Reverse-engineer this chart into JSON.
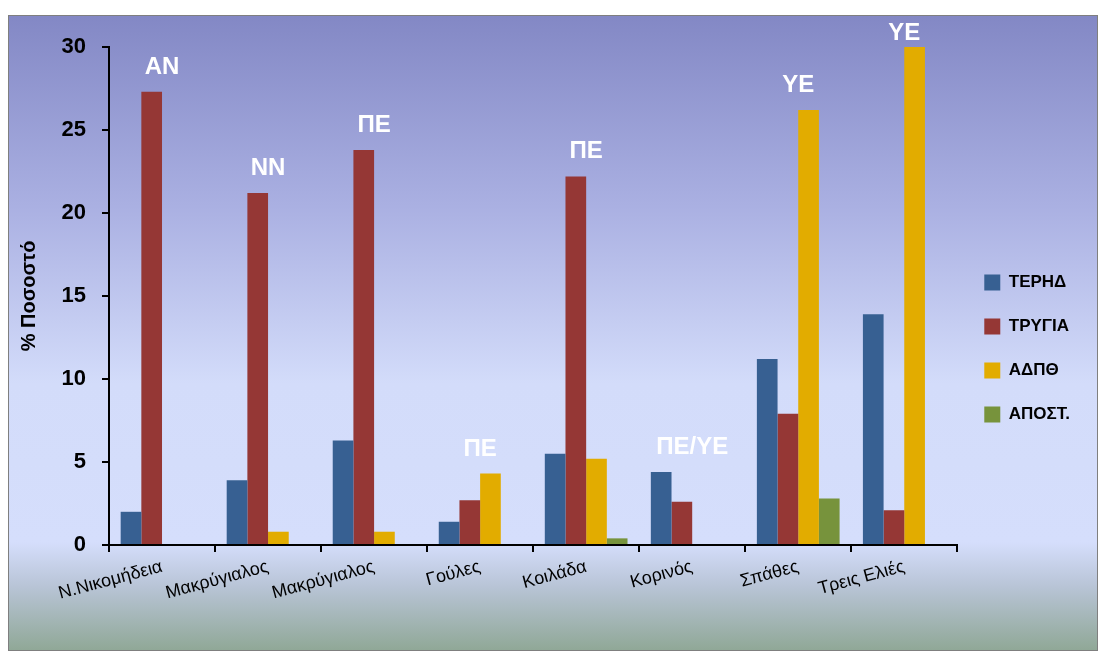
{
  "chart_data": {
    "type": "bar",
    "ylabel": "% Ποσοστό",
    "categories": [
      "Ν.Νικομήδεια",
      "Μακρύγιαλος",
      "Μακρύγιαλος",
      "Γούλες",
      "Κοιλάδα",
      "Κορινός",
      "Σπάθες",
      "Τρεις Ελιές"
    ],
    "series": [
      {
        "name": "ΤΕΡΗΔ",
        "color": "#376092",
        "values": [
          2.0,
          3.9,
          6.3,
          1.4,
          5.5,
          4.4,
          11.2,
          13.9
        ]
      },
      {
        "name": "ΤΡΥΓΙΑ",
        "color": "#953735",
        "values": [
          27.3,
          21.2,
          23.8,
          2.7,
          22.2,
          2.6,
          7.9,
          2.1
        ]
      },
      {
        "name": "ΑΔΠΘ",
        "color": "#e2ac00",
        "values": [
          null,
          0.8,
          0.8,
          4.3,
          5.2,
          null,
          26.2,
          30
        ]
      },
      {
        "name": "ΑΠΟΣΤ.",
        "color": "#77933c",
        "values": [
          null,
          null,
          null,
          null,
          0.4,
          null,
          2.8,
          null
        ]
      }
    ],
    "ylim": [
      0,
      30
    ],
    "yticks": [
      0,
      5,
      10,
      15,
      20,
      25,
      30
    ],
    "legend": "right",
    "annotations": [
      "ΑΝ",
      "ΝΝ",
      "ΠΕ",
      "ΠΕ",
      "ΠΕ",
      "ΠΕ/ΥΕ",
      "ΥΕ",
      "ΥΕ"
    ]
  }
}
